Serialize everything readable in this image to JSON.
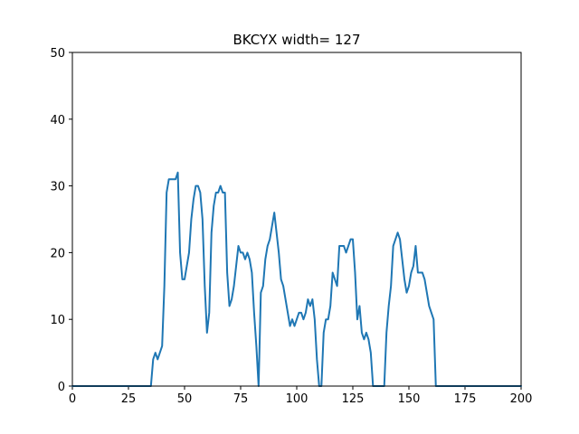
{
  "chart_data": {
    "type": "line",
    "title": "BKCYX width= 127",
    "xlabel": "",
    "ylabel": "",
    "xlim": [
      0,
      200
    ],
    "ylim": [
      0,
      50
    ],
    "xticks": [
      0,
      25,
      50,
      75,
      100,
      125,
      150,
      175,
      200
    ],
    "yticks": [
      0,
      10,
      20,
      30,
      40,
      50
    ],
    "grid": false,
    "colors": {
      "line": "#1f77b4"
    },
    "series": [
      {
        "x": [
          0,
          35,
          36,
          37,
          38,
          39,
          40,
          41,
          42,
          43,
          44,
          45,
          46,
          47,
          48,
          49,
          50,
          51,
          52,
          53,
          54,
          55,
          56,
          57,
          58,
          59,
          60,
          61,
          62,
          63,
          64,
          65,
          66,
          67,
          68,
          69,
          70,
          71,
          72,
          73,
          74,
          75,
          76,
          77,
          78,
          79,
          80,
          81,
          82,
          83,
          84,
          85,
          86,
          87,
          88,
          89,
          90,
          91,
          92,
          93,
          94,
          95,
          96,
          97,
          98,
          99,
          100,
          101,
          102,
          103,
          104,
          105,
          106,
          107,
          108,
          109,
          110,
          111,
          112,
          113,
          114,
          115,
          116,
          117,
          118,
          119,
          120,
          121,
          122,
          123,
          124,
          125,
          126,
          127,
          128,
          129,
          130,
          131,
          132,
          133,
          134,
          135,
          136,
          137,
          138,
          139,
          140,
          141,
          142,
          143,
          144,
          145,
          146,
          147,
          148,
          149,
          150,
          151,
          152,
          153,
          154,
          155,
          156,
          157,
          158,
          159,
          160,
          161,
          162,
          200
        ],
        "y": [
          0,
          0,
          4,
          5,
          4,
          5,
          6,
          15,
          29,
          31,
          31,
          31,
          31,
          32,
          20,
          16,
          16,
          18,
          20,
          25,
          28,
          30,
          30,
          29,
          25,
          15,
          8,
          11,
          23,
          27,
          29,
          29,
          30,
          29,
          29,
          17,
          12,
          13,
          15,
          18,
          21,
          20,
          20,
          19,
          20,
          19,
          17,
          11,
          6,
          0,
          14,
          15,
          19,
          21,
          22,
          24,
          26,
          23,
          20,
          16,
          15,
          13,
          11,
          9,
          10,
          9,
          10,
          11,
          11,
          10,
          11,
          13,
          12,
          13,
          10,
          4,
          0,
          0,
          8,
          10,
          10,
          12,
          17,
          16,
          15,
          21,
          21,
          21,
          20,
          21,
          22,
          22,
          17,
          10,
          12,
          8,
          7,
          8,
          7,
          5,
          0,
          0,
          0,
          0,
          0,
          0,
          8,
          12,
          15,
          21,
          22,
          23,
          22,
          19,
          16,
          14,
          15,
          17,
          18,
          21,
          17,
          17,
          17,
          16,
          14,
          12,
          11,
          10,
          0,
          0
        ]
      }
    ]
  }
}
